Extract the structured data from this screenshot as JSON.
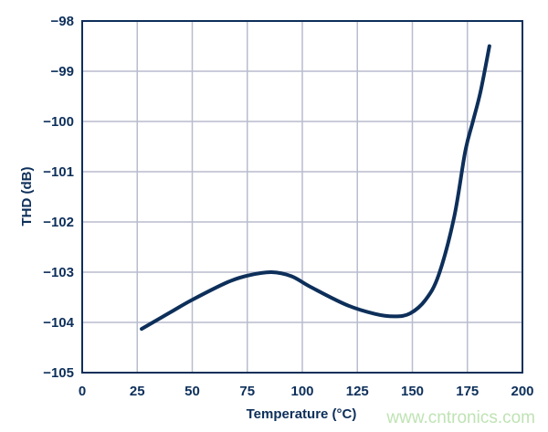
{
  "chart_data": {
    "type": "line",
    "xlabel": "Temperature (°C)",
    "ylabel": "THD (dB)",
    "xlim": [
      0,
      200
    ],
    "ylim": [
      -105,
      -98
    ],
    "xticks": [
      0,
      25,
      50,
      75,
      100,
      125,
      150,
      175,
      200
    ],
    "yticks": [
      -98,
      -99,
      -100,
      -101,
      -102,
      -103,
      -104,
      -105
    ],
    "xtick_labels": [
      "0",
      "25",
      "50",
      "75",
      "100",
      "125",
      "150",
      "175",
      "200"
    ],
    "ytick_labels": [
      "−98",
      "−99",
      "−100",
      "−101",
      "−102",
      "−103",
      "−104",
      "−105"
    ],
    "grid": true,
    "line_color": "#0d2f5a",
    "grid_color": "#b8bccd",
    "series": [
      {
        "x": [
          27,
          40,
          50,
          66,
          76,
          86,
          95,
          104,
          120,
          133,
          142,
          149,
          156,
          162,
          169,
          174,
          177.5,
          181,
          185
        ],
        "y": [
          -104.13,
          -103.8,
          -103.55,
          -103.2,
          -103.06,
          -103.0,
          -103.08,
          -103.3,
          -103.65,
          -103.83,
          -103.88,
          -103.82,
          -103.55,
          -103.05,
          -101.9,
          -100.6,
          -100.0,
          -99.4,
          -98.5
        ]
      }
    ]
  },
  "watermark": "www.cntronics.com"
}
